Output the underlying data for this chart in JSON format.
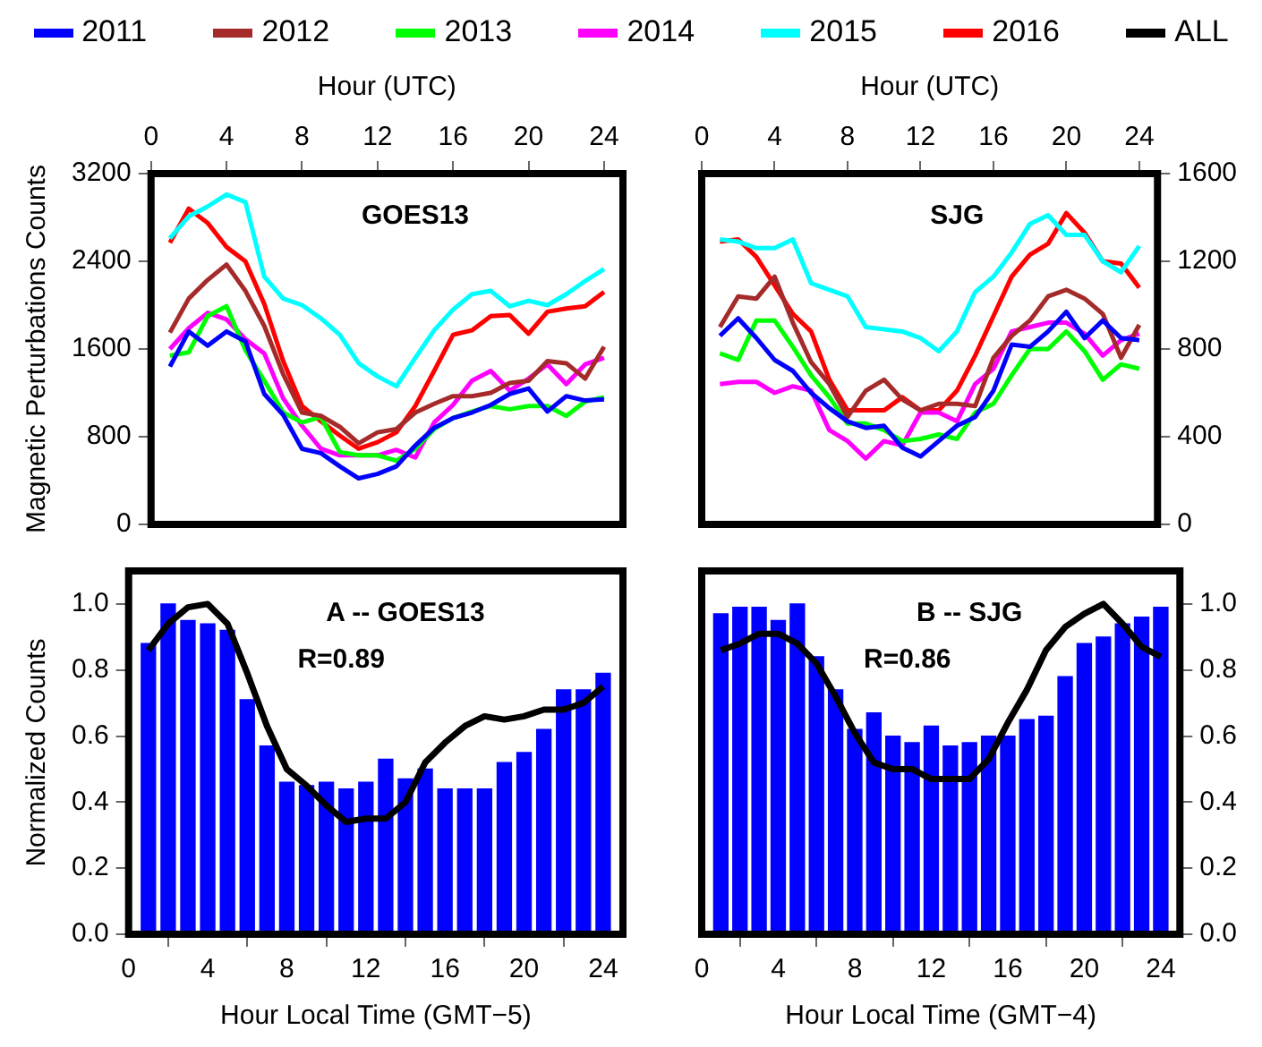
{
  "chart_data": [
    {
      "type": "line",
      "xlabel": "Hour (UTC)",
      "ylabel": "Magnetic Perturbations Counts",
      "x": [
        1,
        2,
        3,
        4,
        5,
        6,
        7,
        8,
        9,
        10,
        11,
        12,
        13,
        14,
        15,
        16,
        17,
        18,
        19,
        20,
        21,
        22,
        23,
        24
      ],
      "xlim": [
        0,
        25
      ],
      "xticks": [
        0,
        4,
        8,
        12,
        16,
        20,
        24
      ],
      "ylim": [
        0,
        3200
      ],
      "yticks": [
        0,
        800,
        1600,
        2400,
        3200
      ],
      "annotations": [
        "GOES13"
      ],
      "legend": "top",
      "series": [
        {
          "name": "2011",
          "color": "#0000ff",
          "values": [
            1440,
            1760,
            1630,
            1760,
            1670,
            1190,
            1000,
            690,
            650,
            530,
            420,
            460,
            530,
            720,
            880,
            970,
            1020,
            1090,
            1190,
            1240,
            1030,
            1170,
            1130,
            1140
          ]
        },
        {
          "name": "2012",
          "color": "#a52a2a",
          "values": [
            1750,
            2060,
            2230,
            2370,
            2130,
            1810,
            1370,
            1020,
            990,
            890,
            740,
            840,
            870,
            1020,
            1100,
            1170,
            1170,
            1200,
            1290,
            1310,
            1490,
            1470,
            1330,
            1620
          ]
        },
        {
          "name": "2013",
          "color": "#00ff00",
          "values": [
            1540,
            1570,
            1900,
            1990,
            1590,
            1310,
            1020,
            930,
            980,
            660,
            630,
            630,
            580,
            690,
            870,
            970,
            1030,
            1080,
            1050,
            1080,
            1080,
            990,
            1120,
            1160
          ]
        },
        {
          "name": "2014",
          "color": "#ff00ff",
          "values": [
            1600,
            1790,
            1930,
            1870,
            1690,
            1560,
            1150,
            900,
            690,
            630,
            630,
            630,
            680,
            610,
            930,
            1090,
            1310,
            1400,
            1220,
            1330,
            1460,
            1280,
            1460,
            1520
          ]
        },
        {
          "name": "2015",
          "color": "#00ffff",
          "values": [
            2610,
            2810,
            2900,
            3010,
            2940,
            2260,
            2060,
            2000,
            1880,
            1730,
            1470,
            1350,
            1260,
            1520,
            1770,
            1960,
            2100,
            2130,
            1990,
            2040,
            2000,
            2100,
            2220,
            2330
          ]
        },
        {
          "name": "2016",
          "color": "#ff0000",
          "values": [
            2570,
            2880,
            2750,
            2530,
            2400,
            2010,
            1490,
            1080,
            940,
            810,
            690,
            750,
            840,
            1080,
            1400,
            1730,
            1770,
            1900,
            1910,
            1740,
            1940,
            1970,
            1990,
            2120
          ]
        }
      ]
    },
    {
      "type": "line",
      "xlabel": "Hour (UTC)",
      "x": [
        1,
        2,
        3,
        4,
        5,
        6,
        7,
        8,
        9,
        10,
        11,
        12,
        13,
        14,
        15,
        16,
        17,
        18,
        19,
        20,
        21,
        22,
        23,
        24
      ],
      "xlim": [
        0,
        25
      ],
      "xticks": [
        0,
        4,
        8,
        12,
        16,
        20,
        24
      ],
      "y2lim": [
        0,
        1600
      ],
      "y2ticks": [
        0,
        400,
        800,
        1200,
        1600
      ],
      "annotations": [
        "SJG"
      ],
      "legend": "top",
      "series": [
        {
          "name": "2011",
          "color": "#0000ff",
          "axis": "y2",
          "values": [
            860,
            940,
            850,
            750,
            700,
            600,
            530,
            470,
            440,
            450,
            350,
            310,
            380,
            450,
            490,
            610,
            820,
            810,
            880,
            970,
            850,
            930,
            850,
            840
          ]
        },
        {
          "name": "2012",
          "color": "#a52a2a",
          "axis": "y2",
          "values": [
            900,
            1040,
            1030,
            1130,
            920,
            740,
            640,
            490,
            610,
            660,
            570,
            520,
            550,
            550,
            540,
            760,
            860,
            930,
            1040,
            1070,
            1030,
            960,
            760,
            910
          ]
        },
        {
          "name": "2013",
          "color": "#00ff00",
          "axis": "y2",
          "values": [
            780,
            750,
            930,
            930,
            810,
            680,
            580,
            460,
            460,
            430,
            380,
            390,
            410,
            390,
            510,
            550,
            680,
            800,
            800,
            880,
            790,
            660,
            730,
            710
          ]
        },
        {
          "name": "2014",
          "color": "#ff00ff",
          "axis": "y2",
          "values": [
            640,
            650,
            650,
            600,
            630,
            610,
            430,
            380,
            300,
            380,
            360,
            510,
            510,
            470,
            640,
            710,
            880,
            900,
            920,
            920,
            870,
            770,
            840,
            870
          ]
        },
        {
          "name": "2015",
          "color": "#00ffff",
          "axis": "y2",
          "values": [
            1300,
            1290,
            1260,
            1260,
            1300,
            1100,
            1070,
            1040,
            900,
            890,
            880,
            850,
            790,
            880,
            1060,
            1130,
            1240,
            1370,
            1410,
            1320,
            1320,
            1200,
            1150,
            1270
          ]
        },
        {
          "name": "2016",
          "color": "#ff0000",
          "axis": "y2",
          "values": [
            1290,
            1300,
            1220,
            1090,
            960,
            880,
            660,
            520,
            520,
            520,
            580,
            520,
            520,
            610,
            770,
            950,
            1130,
            1230,
            1280,
            1420,
            1330,
            1200,
            1190,
            1080
          ]
        }
      ]
    },
    {
      "type": "bar",
      "xlabel": "Hour Local Time (GMT−5)",
      "ylabel": "Normalized Counts",
      "x": [
        1,
        2,
        3,
        4,
        5,
        6,
        7,
        8,
        9,
        10,
        11,
        12,
        13,
        14,
        15,
        16,
        17,
        18,
        19,
        20,
        21,
        22,
        23,
        24
      ],
      "xlim": [
        0,
        25
      ],
      "xticks": [
        0,
        4,
        8,
        12,
        16,
        20,
        24
      ],
      "ylim": [
        0,
        1.1
      ],
      "yticks": [
        {
          "value": 0,
          "label": "0.0"
        },
        {
          "value": 0.2,
          "label": "0.2"
        },
        {
          "value": 0.4,
          "label": "0.4"
        },
        {
          "value": 0.6,
          "label": "0.6"
        },
        {
          "value": 0.8,
          "label": "0.8"
        },
        {
          "value": 1,
          "label": "1.0"
        }
      ],
      "annotations": [
        "A -- GOES13",
        "R=0.89"
      ],
      "legend": "top",
      "series": [
        {
          "color": "#0000ff",
          "values": [
            0.88,
            1.0,
            0.95,
            0.94,
            0.92,
            0.71,
            0.57,
            0.46,
            0.45,
            0.46,
            0.44,
            0.46,
            0.53,
            0.47,
            0.5,
            0.44,
            0.44,
            0.44,
            0.52,
            0.55,
            0.62,
            0.74,
            0.74,
            0.79
          ]
        },
        {
          "type": "line",
          "name": "ALL",
          "color": "#000000",
          "values": [
            0.86,
            0.94,
            0.99,
            1.0,
            0.94,
            0.79,
            0.63,
            0.5,
            0.45,
            0.39,
            0.34,
            0.35,
            0.35,
            0.4,
            0.52,
            0.58,
            0.63,
            0.66,
            0.65,
            0.66,
            0.68,
            0.68,
            0.7,
            0.75
          ]
        }
      ]
    },
    {
      "type": "bar",
      "xlabel": "Hour Local Time (GMT−4)",
      "x": [
        1,
        2,
        3,
        4,
        5,
        6,
        7,
        8,
        9,
        10,
        11,
        12,
        13,
        14,
        15,
        16,
        17,
        18,
        19,
        20,
        21,
        22,
        23,
        24
      ],
      "xlim": [
        0,
        25
      ],
      "xticks": [
        0,
        4,
        8,
        12,
        16,
        20,
        24
      ],
      "y2lim": [
        0,
        1.1
      ],
      "y2ticks": [
        {
          "value": 0,
          "label": "0.0"
        },
        {
          "value": 0.2,
          "label": "0.2"
        },
        {
          "value": 0.4,
          "label": "0.4"
        },
        {
          "value": 0.6,
          "label": "0.6"
        },
        {
          "value": 0.8,
          "label": "0.8"
        },
        {
          "value": 1,
          "label": "1.0"
        }
      ],
      "annotations": [
        "B -- SJG",
        "R=0.86"
      ],
      "legend": "top",
      "series": [
        {
          "color": "#0000ff",
          "axis": "y2",
          "values": [
            0.97,
            0.99,
            0.99,
            0.95,
            1.0,
            0.84,
            0.74,
            0.62,
            0.67,
            0.6,
            0.58,
            0.63,
            0.57,
            0.58,
            0.6,
            0.6,
            0.65,
            0.66,
            0.78,
            0.88,
            0.9,
            0.94,
            0.96,
            0.99
          ]
        },
        {
          "type": "line",
          "name": "ALL",
          "color": "#000000",
          "axis": "y2",
          "values": [
            0.86,
            0.88,
            0.91,
            0.91,
            0.88,
            0.82,
            0.72,
            0.61,
            0.52,
            0.5,
            0.5,
            0.47,
            0.47,
            0.47,
            0.53,
            0.64,
            0.74,
            0.86,
            0.93,
            0.97,
            1.0,
            0.94,
            0.87,
            0.84
          ]
        }
      ]
    }
  ]
}
